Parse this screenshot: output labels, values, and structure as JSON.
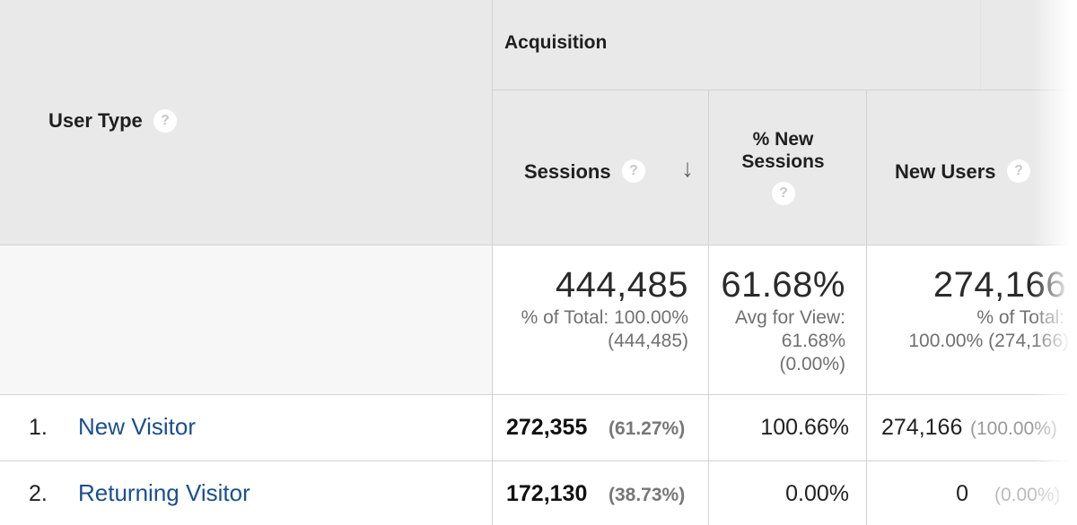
{
  "header": {
    "user_type": "User Type",
    "acquisition": "Acquisition",
    "help_glyph": "?",
    "columns": {
      "sessions": "Sessions",
      "pct_new_sessions_line1": "% New",
      "pct_new_sessions_line2": "Sessions",
      "new_users": "New Users"
    },
    "sort_glyph": "↓"
  },
  "totals": {
    "sessions": "444,485",
    "sessions_sub1": "% of Total: 100.00%",
    "sessions_sub2": "(444,485)",
    "pct_new": "61.68%",
    "pct_new_sub1": "Avg for View:",
    "pct_new_sub2": "61.68%",
    "pct_new_sub3": "(0.00%)",
    "new_users": "274,166",
    "new_users_sub1": "% of Total:",
    "new_users_sub2": "100.00% (274,166)"
  },
  "rows": [
    {
      "index": "1.",
      "user_type": "New Visitor",
      "sessions": "272,355",
      "sessions_pct": "(61.27%)",
      "pct_new": "100.66%",
      "new_users": "274,166",
      "new_users_pct": "(100.00%)"
    },
    {
      "index": "2.",
      "user_type": "Returning Visitor",
      "sessions": "172,130",
      "sessions_pct": "(38.73%)",
      "pct_new": "0.00%",
      "new_users": "0",
      "new_users_pct": "(0.00%)"
    }
  ],
  "colors": {
    "link": "#1a4f8f",
    "header_bg": "#e9e9e9",
    "grid": "#d2d2d2"
  }
}
